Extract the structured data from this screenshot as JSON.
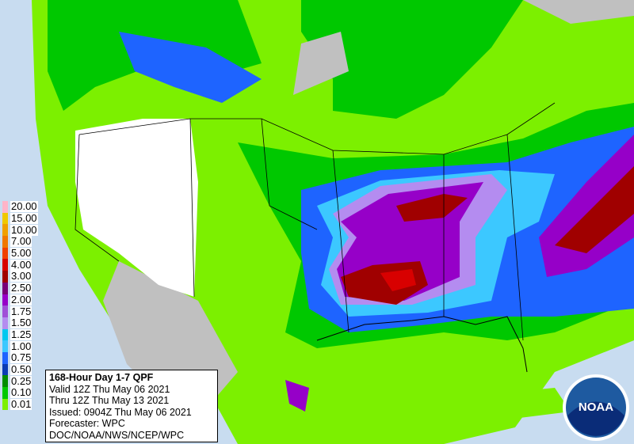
{
  "header": {
    "title": "168-Hour Day 1-7 QPF",
    "valid": "Valid 12Z Thu May 06 2021",
    "thru": "Thru 12Z Thu May 13 2021",
    "issued": "Issued: 0904Z Thu May 06 2021",
    "forecaster": "Forecaster: WPC",
    "source": "DOC/NOAA/NWS/NCEP/WPC"
  },
  "legend": [
    {
      "label": "20.00",
      "color": "#ffb4c8"
    },
    {
      "label": "15.00",
      "color": "#f0c800"
    },
    {
      "label": "10.00",
      "color": "#f0a000"
    },
    {
      "label": "7.00",
      "color": "#f07800"
    },
    {
      "label": "5.00",
      "color": "#f04000"
    },
    {
      "label": "4.00",
      "color": "#d80000"
    },
    {
      "label": "3.00",
      "color": "#a00000"
    },
    {
      "label": "2.50",
      "color": "#780078"
    },
    {
      "label": "2.00",
      "color": "#9600c8"
    },
    {
      "label": "1.75",
      "color": "#a050d8"
    },
    {
      "label": "1.50",
      "color": "#b48cf0"
    },
    {
      "label": "1.25",
      "color": "#00c8f0"
    },
    {
      "label": "1.00",
      "color": "#3cc8ff"
    },
    {
      "label": "0.75",
      "color": "#1e64ff"
    },
    {
      "label": "0.50",
      "color": "#0a3cb4"
    },
    {
      "label": "0.25",
      "color": "#008c00"
    },
    {
      "label": "0.10",
      "color": "#00c800"
    },
    {
      "label": "0.01",
      "color": "#7cf000"
    }
  ],
  "logo": "NOAA"
}
